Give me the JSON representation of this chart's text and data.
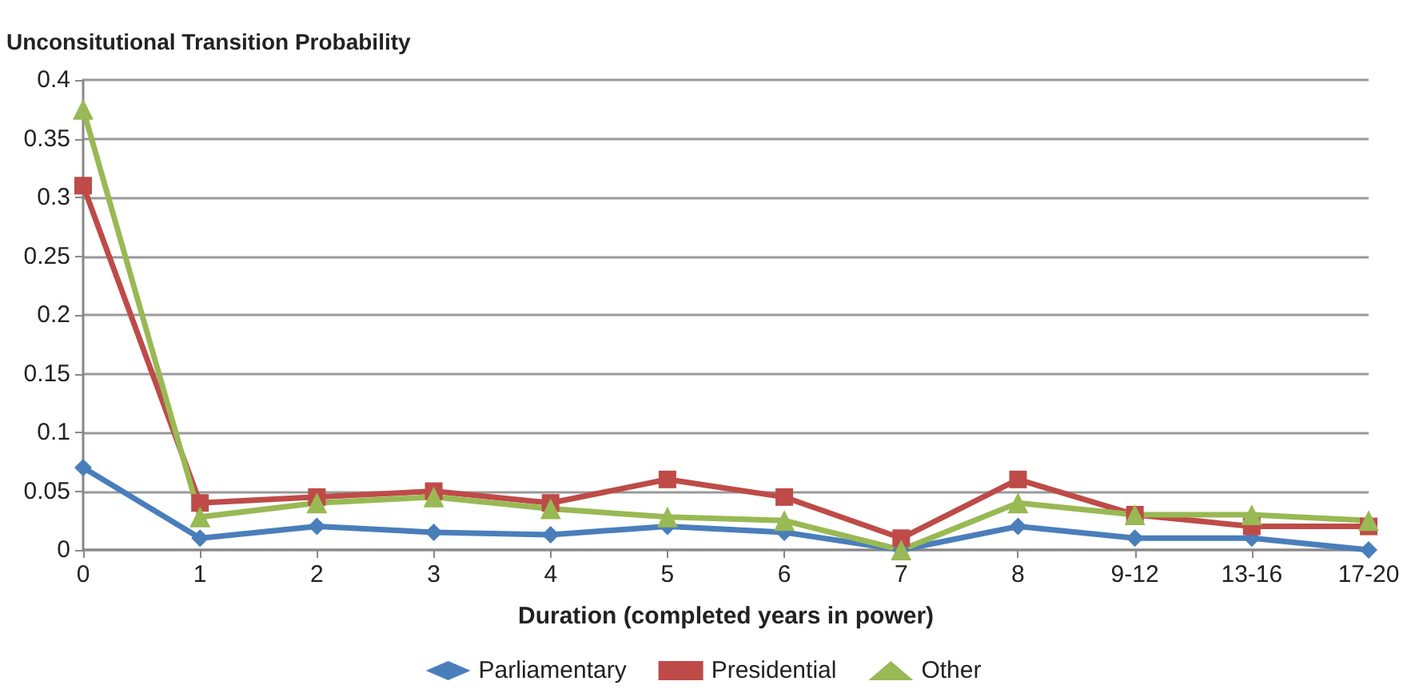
{
  "chart_data": {
    "type": "line",
    "ylabel": "Unconsitutional Transition Probability",
    "xlabel": "Duration (completed years in power)",
    "categories": [
      "0",
      "1",
      "2",
      "3",
      "4",
      "5",
      "6",
      "7",
      "8",
      "9-12",
      "13-16",
      "17-20"
    ],
    "series": [
      {
        "name": "Parliamentary",
        "color": "#4a7ebb",
        "marker": "diamond",
        "values": [
          0.07,
          0.01,
          0.02,
          0.015,
          0.013,
          0.02,
          0.015,
          0,
          0.02,
          0.01,
          0.01,
          0
        ]
      },
      {
        "name": "Presidential",
        "color": "#be4b48",
        "marker": "square",
        "values": [
          0.31,
          0.04,
          0.045,
          0.05,
          0.04,
          0.06,
          0.045,
          0.01,
          0.06,
          0.03,
          0.02,
          0.02
        ]
      },
      {
        "name": "Other",
        "color": "#98b954",
        "marker": "triangle",
        "values": [
          0.375,
          0.028,
          0.04,
          0.045,
          0.035,
          0.028,
          0.025,
          0,
          0.04,
          0.03,
          0.03,
          0.025
        ]
      }
    ],
    "ylim": [
      0,
      0.4
    ],
    "yticks": [
      0,
      0.05,
      0.1,
      0.15,
      0.2,
      0.25,
      0.3,
      0.35,
      0.4
    ],
    "grid": "y",
    "legend": "bottom"
  }
}
